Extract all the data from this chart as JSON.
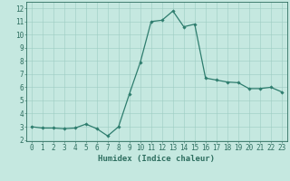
{
  "x": [
    0,
    1,
    2,
    3,
    4,
    5,
    6,
    7,
    8,
    9,
    10,
    11,
    12,
    13,
    14,
    15,
    16,
    17,
    18,
    19,
    20,
    21,
    22,
    23
  ],
  "y": [
    3.0,
    2.9,
    2.9,
    2.85,
    2.9,
    3.2,
    2.85,
    2.3,
    3.0,
    5.5,
    7.9,
    11.0,
    11.1,
    11.8,
    10.6,
    10.8,
    6.7,
    6.55,
    6.4,
    6.35,
    5.9,
    5.9,
    6.0,
    5.65
  ],
  "xlabel": "Humidex (Indice chaleur)",
  "line_color": "#2e7d6e",
  "marker": "D",
  "marker_size": 1.8,
  "line_width": 0.9,
  "bg_color": "#c5e8e0",
  "grid_color": "#9dccc2",
  "xlim": [
    -0.5,
    23.5
  ],
  "ylim": [
    1.9,
    12.5
  ],
  "yticks": [
    2,
    3,
    4,
    5,
    6,
    7,
    8,
    9,
    10,
    11,
    12
  ],
  "xticks": [
    0,
    1,
    2,
    3,
    4,
    5,
    6,
    7,
    8,
    9,
    10,
    11,
    12,
    13,
    14,
    15,
    16,
    17,
    18,
    19,
    20,
    21,
    22,
    23
  ],
  "tick_fontsize": 5.5,
  "xlabel_fontsize": 6.5,
  "tick_color": "#2e6e60",
  "axis_color": "#2e6e60",
  "bottom_bar_color": "#3a8070"
}
